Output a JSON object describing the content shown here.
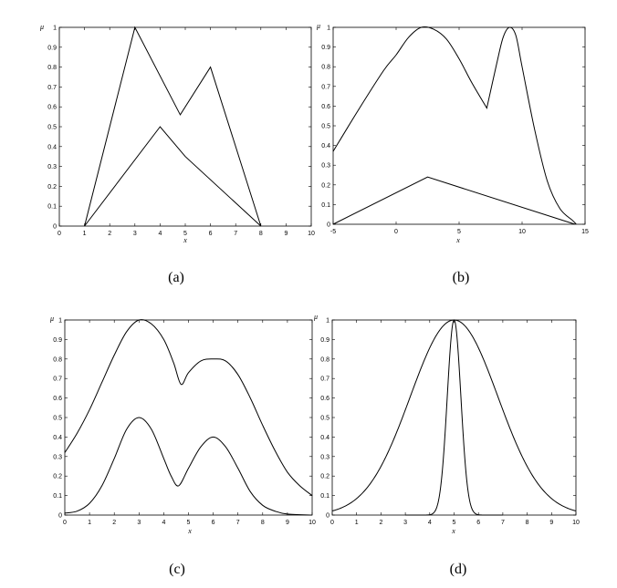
{
  "panels": [
    {
      "caption": "(a)",
      "chart_data": {
        "type": "line",
        "xlabel": "x",
        "ylabel": "μ",
        "xlim": [
          0,
          10
        ],
        "ylim": [
          0,
          1
        ],
        "xticks": [
          "0",
          "1",
          "2",
          "3",
          "4",
          "5",
          "6",
          "7",
          "8",
          "9",
          "10"
        ],
        "yticks": [
          "0",
          "0.1",
          "0.2",
          "0.3",
          "0.4",
          "0.5",
          "0.6",
          "0.7",
          "0.8",
          "0.9",
          "1"
        ],
        "series": [
          {
            "kind": "poly",
            "points": [
              [
                1,
                0
              ],
              [
                3,
                1
              ],
              [
                4.8,
                0.56
              ],
              [
                6,
                0.8
              ],
              [
                8,
                0
              ]
            ]
          },
          {
            "kind": "poly",
            "points": [
              [
                1,
                0
              ],
              [
                4,
                0.5
              ],
              [
                5,
                0.35
              ],
              [
                8,
                0
              ]
            ]
          }
        ]
      }
    },
    {
      "caption": "(b)",
      "chart_data": {
        "type": "line",
        "xlabel": "x",
        "ylabel": "μ",
        "xlim": [
          -5,
          15
        ],
        "ylim": [
          0,
          1
        ],
        "xticks": [
          "-5",
          "0",
          "5",
          "10",
          "15"
        ],
        "yticks": [
          "0",
          "0.1",
          "0.2",
          "0.3",
          "0.4",
          "0.5",
          "0.6",
          "0.7",
          "0.8",
          "0.9",
          "1"
        ],
        "series": [
          {
            "kind": "mixed",
            "points": [
              [
                -5,
                0.37
              ],
              [
                -3,
                0.58
              ],
              [
                -1,
                0.78
              ],
              [
                0,
                0.86
              ],
              [
                1,
                0.95
              ],
              [
                2,
                1
              ],
              [
                3,
                0.99
              ],
              [
                4,
                0.94
              ],
              [
                5,
                0.84
              ],
              [
                6,
                0.72
              ],
              [
                7.2,
                0.59
              ],
              [
                8,
                0.82
              ],
              [
                8.5,
                0.95
              ],
              [
                9,
                1
              ],
              [
                9.5,
                0.96
              ],
              [
                10,
                0.8
              ],
              [
                11,
                0.48
              ],
              [
                12,
                0.22
              ],
              [
                13,
                0.08
              ],
              [
                14,
                0.02
              ],
              [
                14.3,
                0
              ]
            ]
          },
          {
            "kind": "poly",
            "points": [
              [
                -5,
                0
              ],
              [
                2.5,
                0.24
              ],
              [
                14.2,
                0
              ]
            ]
          }
        ]
      }
    },
    {
      "caption": "(c)",
      "chart_data": {
        "type": "line",
        "xlabel": "x",
        "ylabel": "μ",
        "xlim": [
          0,
          10
        ],
        "ylim": [
          0,
          1
        ],
        "xticks": [
          "0",
          "1",
          "2",
          "3",
          "4",
          "5",
          "6",
          "7",
          "8",
          "9",
          "10"
        ],
        "yticks": [
          "0",
          "0.1",
          "0.2",
          "0.3",
          "0.4",
          "0.5",
          "0.6",
          "0.7",
          "0.8",
          "0.9",
          "1"
        ],
        "series": [
          {
            "kind": "smooth",
            "points": [
              [
                0,
                0.32
              ],
              [
                0.5,
                0.42
              ],
              [
                1,
                0.54
              ],
              [
                1.5,
                0.68
              ],
              [
                2,
                0.82
              ],
              [
                2.5,
                0.94
              ],
              [
                3,
                1
              ],
              [
                3.5,
                0.98
              ],
              [
                4,
                0.9
              ],
              [
                4.4,
                0.78
              ],
              [
                4.7,
                0.67
              ],
              [
                5,
                0.73
              ],
              [
                5.5,
                0.79
              ],
              [
                6,
                0.8
              ],
              [
                6.5,
                0.79
              ],
              [
                7,
                0.72
              ],
              [
                7.5,
                0.6
              ],
              [
                8,
                0.46
              ],
              [
                8.5,
                0.33
              ],
              [
                9,
                0.22
              ],
              [
                9.5,
                0.15
              ],
              [
                10,
                0.1
              ]
            ]
          },
          {
            "kind": "smooth",
            "points": [
              [
                0,
                0.01
              ],
              [
                0.5,
                0.02
              ],
              [
                1,
                0.06
              ],
              [
                1.5,
                0.15
              ],
              [
                2,
                0.29
              ],
              [
                2.5,
                0.44
              ],
              [
                3,
                0.5
              ],
              [
                3.5,
                0.44
              ],
              [
                4,
                0.29
              ],
              [
                4.3,
                0.2
              ],
              [
                4.6,
                0.15
              ],
              [
                5,
                0.24
              ],
              [
                5.5,
                0.35
              ],
              [
                6,
                0.4
              ],
              [
                6.5,
                0.35
              ],
              [
                7,
                0.24
              ],
              [
                7.5,
                0.12
              ],
              [
                8,
                0.05
              ],
              [
                8.5,
                0.02
              ],
              [
                9,
                0.005
              ],
              [
                10,
                0
              ]
            ]
          }
        ]
      }
    },
    {
      "caption": "(d)",
      "chart_data": {
        "type": "line",
        "xlabel": "x",
        "ylabel": "μ",
        "xlim": [
          0,
          10
        ],
        "ylim": [
          0,
          1
        ],
        "xticks": [
          "0",
          "1",
          "2",
          "3",
          "4",
          "5",
          "6",
          "7",
          "8",
          "9",
          "10"
        ],
        "yticks": [
          "0",
          "0.1",
          "0.2",
          "0.3",
          "0.4",
          "0.5",
          "0.6",
          "0.7",
          "0.8",
          "0.9",
          "1"
        ],
        "series": [
          {
            "kind": "gauss",
            "mean": 5,
            "sigma": 1.8,
            "from": 0,
            "to": 10
          },
          {
            "kind": "gauss",
            "mean": 5,
            "sigma": 0.28,
            "from": 3,
            "to": 7
          }
        ]
      }
    }
  ]
}
